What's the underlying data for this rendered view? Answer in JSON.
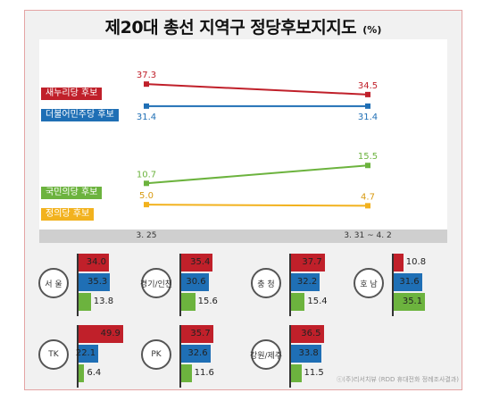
{
  "title": "제20대 총선 지역구 정당후보지지도",
  "unit": "(%)",
  "chart_data": [
    {
      "type": "line",
      "x": [
        "3. 25",
        "3. 31 ~ 4. 2"
      ],
      "series": [
        {
          "name": "새누리당 후보",
          "values": [
            37.3,
            34.5
          ],
          "color": "#c0202a"
        },
        {
          "name": "더불어민주당 후보",
          "values": [
            31.4,
            31.4
          ],
          "color": "#1f6fb5"
        },
        {
          "name": "국민의당 후보",
          "values": [
            10.7,
            15.5
          ],
          "color": "#6cb33e"
        },
        {
          "name": "정의당 후보",
          "values": [
            5.0,
            4.7
          ],
          "color": "#f2b21e"
        }
      ],
      "value_labels": [
        [
          "37.3",
          "34.5"
        ],
        [
          "31.4",
          "31.4"
        ],
        [
          "10.7",
          "15.5"
        ],
        [
          "5.0",
          "4.7"
        ]
      ],
      "ylim": [
        0,
        45
      ],
      "grid": false,
      "legend": "left"
    },
    {
      "type": "bar",
      "orientation": "horizontal",
      "categories": [
        "서 울",
        "경기/인천",
        "충 청",
        "호 남",
        "TK",
        "PK",
        "강원/제주"
      ],
      "series": [
        {
          "name": "새누리당 후보",
          "values": [
            34.0,
            35.4,
            37.7,
            10.8,
            49.9,
            35.7,
            36.5
          ],
          "labels": [
            "34.0",
            "35.4",
            "37.7",
            "10.8",
            "49.9",
            "35.7",
            "36.5"
          ],
          "color": "#c0202a"
        },
        {
          "name": "더불어민주당 후보",
          "values": [
            35.3,
            30.6,
            32.2,
            31.6,
            22.1,
            32.6,
            33.8
          ],
          "labels": [
            "35.3",
            "30.6",
            "32.2",
            "31.6",
            "22.1",
            "32.6",
            "33.8"
          ],
          "color": "#1f6fb5"
        },
        {
          "name": "국민의당 후보",
          "values": [
            13.8,
            15.6,
            15.4,
            35.1,
            6.4,
            11.6,
            11.5
          ],
          "labels": [
            "13.8",
            "15.6",
            "15.4",
            "35.1",
            "6.4",
            "11.6",
            "11.5"
          ],
          "color": "#6cb33e"
        }
      ]
    }
  ],
  "source": "ⓒ(주)리서치뷰 (RDD 휴대전화 정례조사결과)"
}
